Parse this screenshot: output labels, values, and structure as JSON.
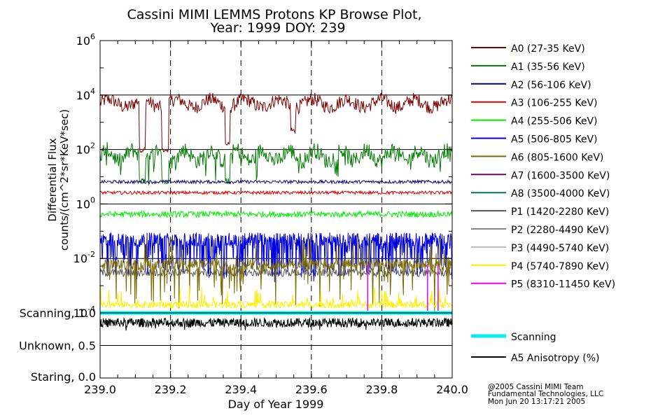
{
  "title": {
    "line1": "Cassini MIMI LEMMS Protons KP Browse Plot,",
    "line2": "Year: 1999 DOY: 239"
  },
  "credits": {
    "line1": "@2005 Cassini MIMI Team",
    "line2": "Fundamental Technologies, LLC",
    "line3": "Mon Jun 20 13:17:21 2005"
  },
  "chart_data": [
    {
      "type": "line",
      "panel": "flux",
      "xlabel": "Day of Year 1999",
      "ylabel": "Differential Flux",
      "ylabel_units": "counts/(cm^2*sr*KeV*sec)",
      "yscale": "log",
      "xlim": [
        239.0,
        240.0
      ],
      "ylim": [
        0.0001,
        1000000
      ],
      "x_ticks": [
        "239.0",
        "239.2",
        "239.4",
        "239.6",
        "239.8",
        "240.0"
      ],
      "y_ticks": [
        {
          "base": "10",
          "exp": "6"
        },
        {
          "base": "10",
          "exp": "4"
        },
        {
          "base": "10",
          "exp": "2"
        },
        {
          "base": "10",
          "exp": "0"
        },
        {
          "base": "10",
          "exp": "-2"
        },
        {
          "base": "10",
          "exp": "-4"
        }
      ],
      "grid": "dashed vertical at 239.2, 239.4, 239.6, 239.8; solid horizontal at each decade",
      "legend_position": "right",
      "series": [
        {
          "name": "A0 (27-35 KeV)",
          "color": "#7a0000",
          "typical": 5000,
          "noise": "spiky dips to ~100"
        },
        {
          "name": "A1 (35-56 KeV)",
          "color": "#007a00",
          "typical": 60,
          "noise": "dips to ~5"
        },
        {
          "name": "A2 (56-106 KeV)",
          "color": "#000070",
          "typical": 6.5
        },
        {
          "name": "A3 (106-255 KeV)",
          "color": "#dd0000",
          "typical": 2.6
        },
        {
          "name": "A4 (255-506 KeV)",
          "color": "#00ee00",
          "typical": 0.42
        },
        {
          "name": "A5 (506-805 KeV)",
          "color": "#0000dd",
          "typical": 0.05,
          "noise": "dense spikes down to ~0.002"
        },
        {
          "name": "A6 (805-1600 KeV)",
          "color": "#7a6a00",
          "typical": 0.006,
          "noise": "sparse spikes down to ~0.0001"
        },
        {
          "name": "A7 (1600-3500 KeV)",
          "color": "#700070"
        },
        {
          "name": "A8 (3500-4000 KeV)",
          "color": "#007070"
        },
        {
          "name": "P1 (1420-2280 KeV)",
          "color": "#555555",
          "typical": 0.003
        },
        {
          "name": "P2 (2280-4490 KeV)",
          "color": "#888888"
        },
        {
          "name": "P3 (4490-5740 KeV)",
          "color": "#bbbbbb"
        },
        {
          "name": "P4 (5740-7890 KeV)",
          "color": "#ffee00",
          "typical": 0.0002,
          "noise": "sparse bursts near the bottom"
        },
        {
          "name": "P5 (8310-11450 KeV)",
          "color": "#ee00ee"
        }
      ]
    },
    {
      "type": "line",
      "panel": "mode",
      "xlim": [
        239.0,
        240.0
      ],
      "ylim": [
        0.0,
        1.0
      ],
      "y_ticks": [
        "Scanning, 1.0",
        "Unknown, 0.5",
        "Staring, 0.0"
      ],
      "series": [
        {
          "name": "Scanning",
          "color": "#00eeee",
          "value": 1.0
        },
        {
          "name": "A5 Anisotropy (%)",
          "color": "#000000",
          "typical": 0.85,
          "noise": "fluctuates 0.75-0.98"
        }
      ]
    }
  ]
}
